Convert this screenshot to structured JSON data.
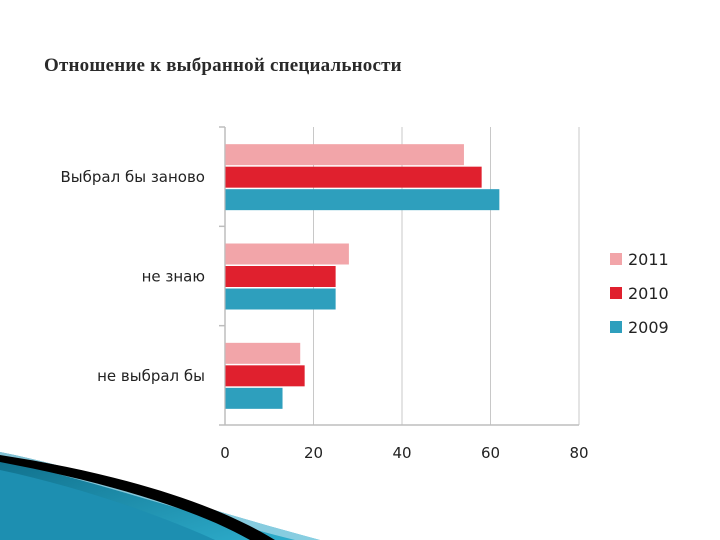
{
  "slide": {
    "title": "Отношение к выбранной специальности"
  },
  "chart_data": {
    "type": "bar",
    "orientation": "horizontal",
    "categories": [
      "Выбрал бы заново",
      "не знаю",
      "не выбрал бы"
    ],
    "series": [
      {
        "name": "2011",
        "color": "#f2a5a9",
        "values": [
          54,
          28,
          17
        ]
      },
      {
        "name": "2010",
        "color": "#e0202e",
        "values": [
          58,
          25,
          18
        ]
      },
      {
        "name": "2009",
        "color": "#2e9fbd",
        "values": [
          62,
          25,
          13
        ]
      }
    ],
    "xlim": [
      0,
      80
    ],
    "xticks": [
      0,
      20,
      40,
      60,
      80
    ],
    "grid": true,
    "legend_position": "right"
  }
}
